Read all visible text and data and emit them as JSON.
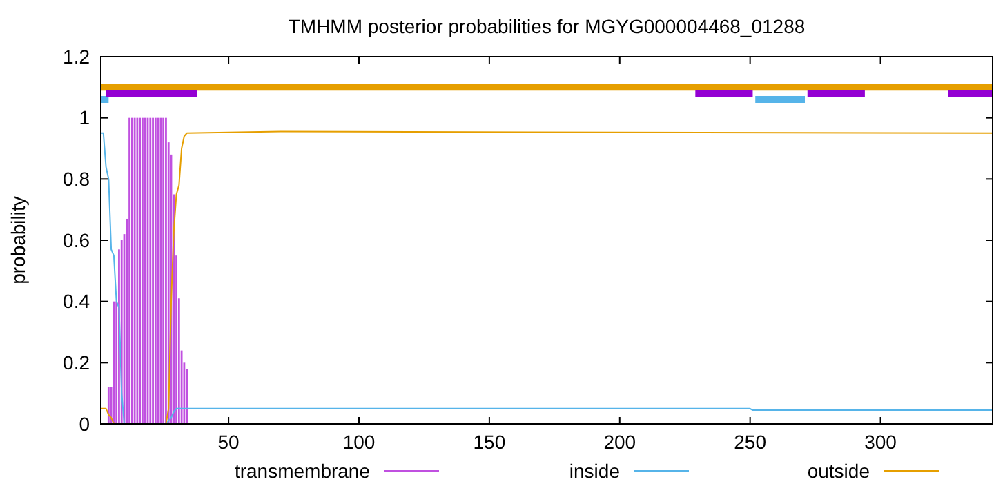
{
  "chart_data": {
    "type": "line",
    "title": "TMHMM posterior probabilities for MGYG000004468_01288",
    "ylabel": "probability",
    "xlim": [
      1,
      343
    ],
    "xticks": [
      50,
      100,
      150,
      200,
      250,
      300
    ],
    "ylim": [
      0,
      1.2
    ],
    "yticks": [
      0,
      0.2,
      0.4,
      0.6,
      0.8,
      1,
      1.2
    ],
    "grid": false,
    "legend": "bottom",
    "series": [
      {
        "name": "transmembrane",
        "type": "bar",
        "color": "#c050e0",
        "x": [
          4,
          5,
          6,
          7,
          8,
          9,
          10,
          11,
          12,
          13,
          14,
          15,
          16,
          17,
          18,
          19,
          20,
          21,
          22,
          23,
          24,
          25,
          26,
          27,
          28,
          29,
          30,
          31,
          32,
          33,
          34
        ],
        "values": [
          0.12,
          0.12,
          0.4,
          0.4,
          0.57,
          0.6,
          0.62,
          0.67,
          1,
          1,
          1,
          1,
          1,
          1,
          1,
          1,
          1,
          1,
          1,
          1,
          1,
          1,
          1,
          0.92,
          0.88,
          0.75,
          0.55,
          0.41,
          0.24,
          0.2,
          0.18
        ]
      },
      {
        "name": "inside",
        "color": "#56b4e9",
        "x": [
          1,
          2,
          3,
          4,
          5,
          6,
          7,
          8,
          9,
          10,
          26,
          27,
          28,
          29,
          30,
          100,
          250,
          251,
          343
        ],
        "values": [
          0.95,
          0.95,
          0.84,
          0.8,
          0.57,
          0.55,
          0.4,
          0.38,
          0.1,
          0,
          0,
          0.01,
          0.02,
          0.04,
          0.05,
          0.05,
          0.05,
          0.045,
          0.045
        ]
      },
      {
        "name": "outside",
        "color": "#e69f00",
        "x": [
          1,
          2,
          3,
          4,
          5,
          6,
          26,
          27,
          28,
          29,
          30,
          31,
          32,
          33,
          34,
          70,
          343
        ],
        "values": [
          0.05,
          0.05,
          0.05,
          0.03,
          0.02,
          0,
          0,
          0.05,
          0.4,
          0.63,
          0.75,
          0.78,
          0.9,
          0.94,
          0.95,
          0.955,
          0.95
        ]
      },
      {
        "color": "#e69f00",
        "x": [
          1,
          343
        ],
        "values": [
          1.1,
          1.1
        ]
      },
      {
        "color": "#56b4e9",
        "x": [
          1,
          4,
          100,
          252,
          271
        ],
        "values": [
          1.06,
          1.06,
          null,
          1.06,
          1.06
        ]
      },
      {
        "color": "#9400d3",
        "x": [
          3,
          38,
          100,
          229,
          251,
          260,
          272,
          294,
          310,
          326,
          343
        ],
        "values": [
          1.08,
          1.08,
          null,
          1.08,
          1.08,
          null,
          1.08,
          1.08,
          null,
          1.08,
          1.08
        ]
      }
    ]
  }
}
